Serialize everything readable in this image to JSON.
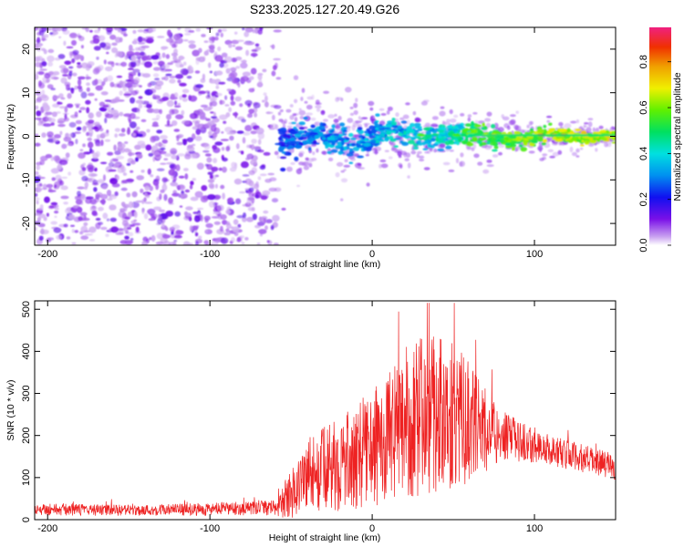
{
  "title": "S233.2025.127.20.49.G26",
  "chart_data": [
    {
      "type": "heatmap",
      "title": "S233.2025.127.20.49.G26",
      "xlabel": "Height of straight line (km)",
      "ylabel": "Frequency (Hz)",
      "xlim": [
        -208,
        150
      ],
      "ylim": [
        -25,
        25
      ],
      "xticks": [
        -200,
        -100,
        0,
        100
      ],
      "yticks": [
        -20,
        -10,
        0,
        10,
        20
      ],
      "noise_region_x": [
        -208,
        -58
      ],
      "signal_region_x": [
        -58,
        150
      ],
      "signal_center_freq": 0,
      "colorbar": {
        "label": "Normalized spectral amplitude",
        "ticks": [
          0.0,
          0.2,
          0.4,
          0.6,
          0.8
        ],
        "ticklabels": [
          "0.0",
          "0.2",
          "0.4",
          "0.6",
          "0.8"
        ],
        "range": [
          0,
          0.95
        ],
        "colormap": "rainbow"
      },
      "grid": false
    },
    {
      "type": "line",
      "xlabel": "Height of straight line (km)",
      "ylabel": "SNR (10 * v/v)",
      "xlim": [
        -208,
        150
      ],
      "ylim": [
        0,
        520
      ],
      "xticks": [
        -200,
        -100,
        0,
        100
      ],
      "yticks": [
        0,
        100,
        200,
        300,
        400,
        500
      ],
      "color": "#ee2222",
      "envelope": [
        {
          "x": -208,
          "base": 25,
          "spread": 15
        },
        {
          "x": -150,
          "base": 22,
          "spread": 13
        },
        {
          "x": -100,
          "base": 25,
          "spread": 15
        },
        {
          "x": -60,
          "base": 28,
          "spread": 18
        },
        {
          "x": -50,
          "base": 60,
          "spread": 60
        },
        {
          "x": -40,
          "base": 110,
          "spread": 90
        },
        {
          "x": -20,
          "base": 130,
          "spread": 110
        },
        {
          "x": 0,
          "base": 170,
          "spread": 140
        },
        {
          "x": 20,
          "base": 220,
          "spread": 170
        },
        {
          "x": 35,
          "base": 260,
          "spread": 200
        },
        {
          "x": 50,
          "base": 250,
          "spread": 180
        },
        {
          "x": 65,
          "base": 220,
          "spread": 120
        },
        {
          "x": 80,
          "base": 200,
          "spread": 60
        },
        {
          "x": 100,
          "base": 175,
          "spread": 40
        },
        {
          "x": 120,
          "base": 155,
          "spread": 35
        },
        {
          "x": 150,
          "base": 125,
          "spread": 30
        }
      ],
      "grid": false
    }
  ]
}
